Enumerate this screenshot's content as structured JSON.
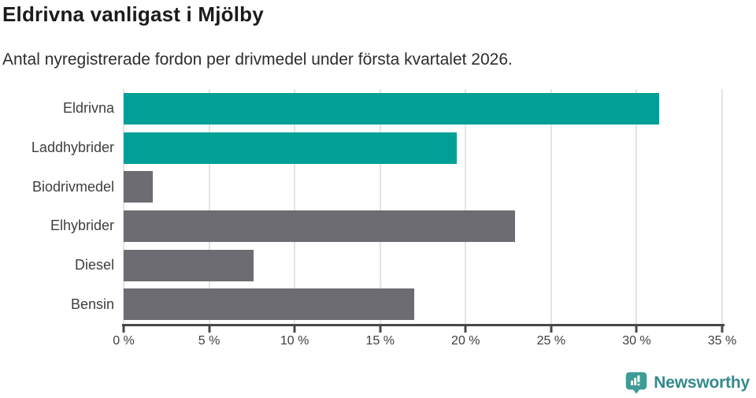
{
  "chart_data": {
    "type": "bar",
    "orientation": "horizontal",
    "title": "Eldrivna vanligast i Mjölby",
    "subtitle": "Antal nyregistrerade fordon per drivmedel under första kvartalet 2026.",
    "categories": [
      "Eldrivna",
      "Laddhybrider",
      "Biodrivmedel",
      "Elhybrider",
      "Diesel",
      "Bensin"
    ],
    "values": [
      31.3,
      19.5,
      1.7,
      22.9,
      7.6,
      17.0
    ],
    "unit": "%",
    "xlim": [
      0,
      35
    ],
    "xticks": [
      0,
      5,
      10,
      15,
      20,
      25,
      30,
      35
    ],
    "xtick_labels": [
      "0 %",
      "5 %",
      "10 %",
      "15 %",
      "20 %",
      "25 %",
      "30 %",
      "35 %"
    ],
    "bar_color_keys": [
      "highlight",
      "highlight",
      "base",
      "base",
      "base",
      "base"
    ],
    "colors": {
      "highlight": "#00A096",
      "base": "#6C6C72",
      "gridline": "#E4E4E4",
      "axis": "#48484A"
    },
    "grid": "vertical",
    "legend": "none"
  },
  "footer": {
    "brand": "Newsworthy",
    "brand_color": "#35898B",
    "icon_color": "#3E9B95",
    "icon": "newsworthy-speech-bubble-barchart-icon"
  }
}
